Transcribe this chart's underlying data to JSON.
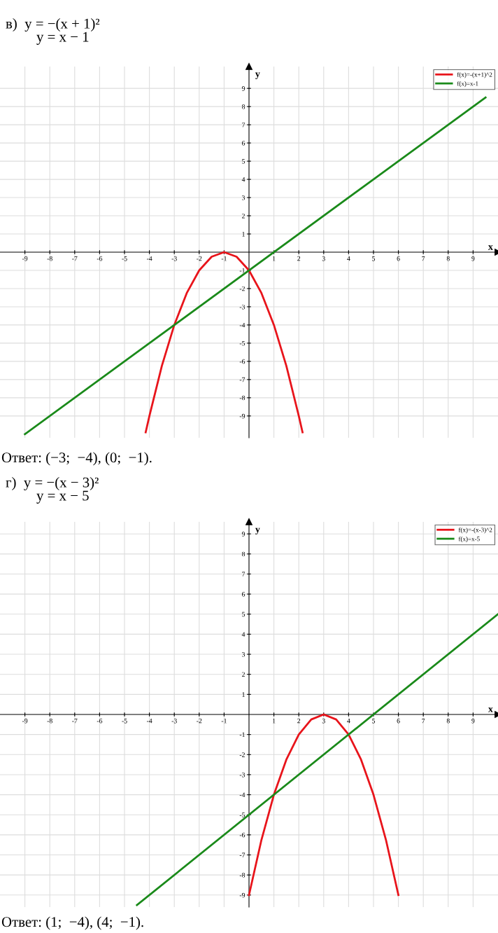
{
  "chart_data": [
    {
      "type": "line",
      "title": "в)  y = −(x + 1)²",
      "subtitle": "y = x − 1",
      "xlabel": "x",
      "ylabel": "y",
      "xlim": [
        -10,
        10
      ],
      "ylim": [
        -10.2,
        10.2
      ],
      "xticks": [
        -9,
        -8,
        -7,
        -6,
        -5,
        -4,
        -3,
        -2,
        -1,
        1,
        2,
        3,
        4,
        5,
        6,
        7,
        8,
        9
      ],
      "yticks": [
        -9,
        -8,
        -7,
        -6,
        -5,
        -4,
        -3,
        -2,
        -1,
        1,
        2,
        3,
        4,
        5,
        6,
        7,
        8,
        9
      ],
      "grid": true,
      "legend": "top right",
      "series": [
        {
          "name": "f(x)=-(x+1)^2",
          "color": "#e8141b",
          "x": [
            -4.15,
            -4,
            -3.5,
            -3,
            -2.5,
            -2,
            -1.5,
            -1,
            -0.5,
            0,
            0.5,
            1,
            1.5,
            2,
            2.15
          ],
          "values": [
            -9.9,
            -9,
            -6.25,
            -4,
            -2.25,
            -1,
            -0.25,
            0,
            -0.25,
            -1,
            -2.25,
            -4,
            -6.25,
            -9,
            -9.9
          ]
        },
        {
          "name": "f(x)=x-1",
          "color": "#1a8a1a",
          "x": [
            -9,
            9.5
          ],
          "values": [
            -10,
            8.5
          ]
        }
      ],
      "annotations": [
        "Ответ: (−3;  −4), (0;  −1)."
      ]
    },
    {
      "type": "line",
      "title": "г)  y = −(x − 3)²",
      "subtitle": "y = x − 5",
      "xlabel": "x",
      "ylabel": "y",
      "xlim": [
        -10,
        10
      ],
      "ylim": [
        -9.6,
        9.6
      ],
      "xticks": [
        -9,
        -8,
        -7,
        -6,
        -5,
        -4,
        -3,
        -2,
        -1,
        1,
        2,
        3,
        4,
        5,
        6,
        7,
        8,
        9
      ],
      "yticks": [
        -9,
        -8,
        -7,
        -6,
        -5,
        -4,
        -3,
        -2,
        -1,
        1,
        2,
        3,
        4,
        5,
        6,
        7,
        8,
        9
      ],
      "grid": true,
      "legend": "top right",
      "series": [
        {
          "name": "f(x)=-(x-3)^2",
          "color": "#e8141b",
          "x": [
            0,
            0.5,
            1,
            1.5,
            2,
            2.5,
            3,
            3.5,
            4,
            4.5,
            5,
            5.5,
            6
          ],
          "values": [
            -9,
            -6.25,
            -4,
            -2.25,
            -1,
            -0.25,
            0,
            -0.25,
            -1,
            -2.25,
            -4,
            -6.25,
            -9
          ]
        },
        {
          "name": "f(x)=x-5",
          "color": "#1a8a1a",
          "x": [
            -4.5,
            10
          ],
          "values": [
            -9.5,
            5
          ]
        }
      ],
      "annotations": [
        "Ответ: (1;  −4), (4;  −1)."
      ]
    }
  ]
}
